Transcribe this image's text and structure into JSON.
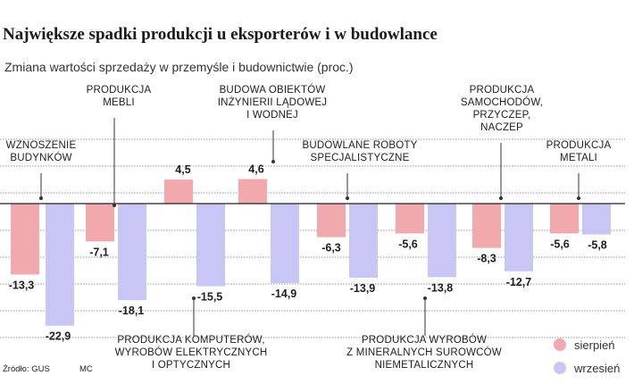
{
  "title": "Największe spadki produkcji u eksporterów i w budowlance",
  "subtitle": "Zmiana wartości sprzedaży w przemyśle i budownictwie (proc.)",
  "source": "Źródło: GUS",
  "credit": "MC",
  "colors": {
    "sierpien": "#f2a9ae",
    "wrzesien": "#c8c6f4",
    "grid": "#333333",
    "leader": "#333333"
  },
  "chart_data": {
    "type": "bar",
    "ylim": [
      -25,
      13
    ],
    "grid": true,
    "legend": "bottom-right",
    "categories": [
      {
        "lines": [
          "WZNOSZENIE",
          "BUDYNKÓW"
        ]
      },
      {
        "lines": [
          "PRODUKCJA",
          "MEBLI"
        ]
      },
      {
        "lines": [
          "PRODUKCJA KOMPUTERÓW,",
          "WYROBÓW ELEKTRYCZNYCH",
          "I OPTYCZNYCH"
        ]
      },
      {
        "lines": [
          "BUDOWA OBIEKTÓW",
          "INŻYNIERII LĄDOWEJ",
          "I WODNEJ"
        ]
      },
      {
        "lines": [
          "BUDOWLANE ROBOTY",
          "SPECJALISTYCZNE"
        ]
      },
      {
        "lines": [
          "PRODUKCJA WYROBÓW",
          "Z MINERALNYCH SUROWCÓW",
          "NIEMETALICZNYCH"
        ]
      },
      {
        "lines": [
          "PRODUKCJA",
          "SAMOCHODÓW,",
          "PRZYCZEP,",
          "NACZEP"
        ]
      },
      {
        "lines": [
          "PRODUKCJA",
          "METALI"
        ]
      }
    ],
    "series": [
      {
        "name": "sierpień",
        "values": [
          -13.3,
          -7.1,
          4.5,
          4.6,
          -6.3,
          -5.6,
          -8.3,
          -5.6
        ]
      },
      {
        "name": "wrzesień",
        "values": [
          -22.9,
          -18.1,
          -15.5,
          -14.9,
          -13.9,
          -13.8,
          -12.7,
          -5.8
        ]
      }
    ],
    "value_labels": [
      [
        "-13,3",
        "-7,1",
        "4,5",
        "4,6",
        "-6,3",
        "-5,6",
        "-8,3",
        "-5,6"
      ],
      [
        "-22,9",
        "-18,1",
        "-15,5",
        "-14,9",
        "-13,9",
        "-13,8",
        "-12,7",
        "-5,8"
      ]
    ]
  }
}
